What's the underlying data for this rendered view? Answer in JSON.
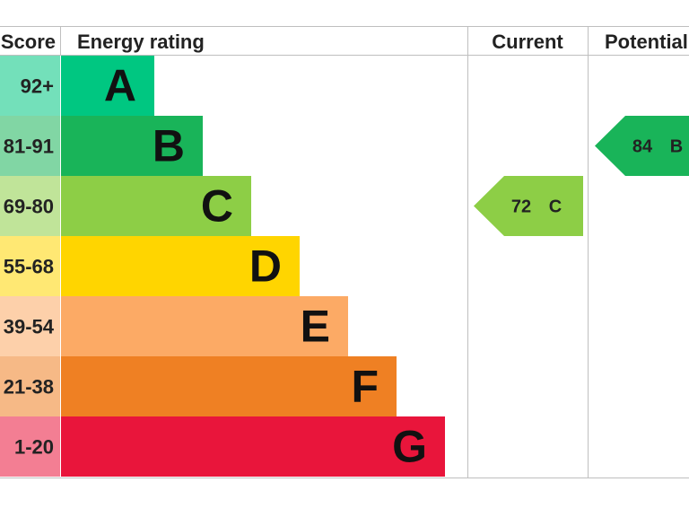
{
  "chart_data": {
    "type": "bar",
    "columns": {
      "score": "Score",
      "rating": "Energy rating",
      "current": "Current",
      "potential": "Potential"
    },
    "bands": [
      {
        "letter": "A",
        "score": "92+",
        "color": "#00c781"
      },
      {
        "letter": "B",
        "score": "81-91",
        "color": "#19b459"
      },
      {
        "letter": "C",
        "score": "69-80",
        "color": "#8dce46"
      },
      {
        "letter": "D",
        "score": "55-68",
        "color": "#ffd500"
      },
      {
        "letter": "E",
        "score": "39-54",
        "color": "#fcaa65"
      },
      {
        "letter": "F",
        "score": "21-38",
        "color": "#ef8023"
      },
      {
        "letter": "G",
        "score": "1-20",
        "color": "#e9153b"
      }
    ],
    "current": {
      "value": "72",
      "letter": "C"
    },
    "potential": {
      "value": "84",
      "letter": "B"
    }
  },
  "colors": {
    "grid": "#bfbfbf",
    "text": "#222222",
    "score_text": "#222222"
  }
}
